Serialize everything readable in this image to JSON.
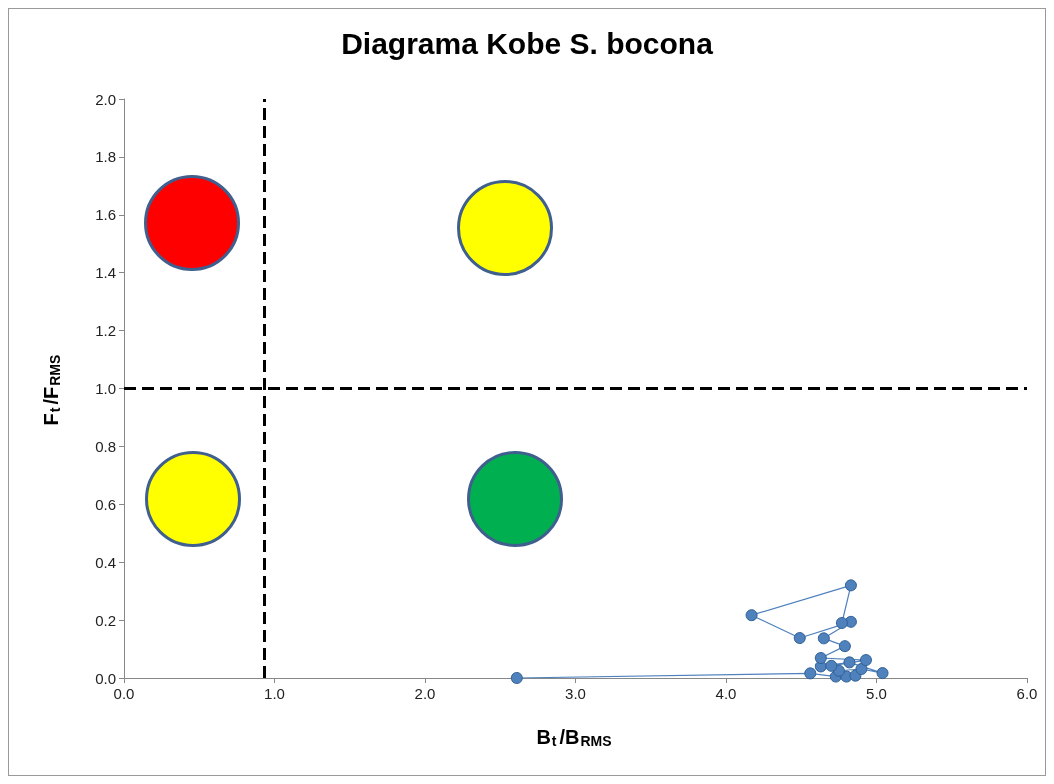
{
  "chart_data": {
    "type": "line",
    "title": "Diagrama Kobe S. bocona",
    "xlabel": "B$_{t}$/B$_{RMS}$",
    "ylabel": "F$_{t}$/F$_{RMS}$",
    "x": [
      2.61,
      4.56,
      4.73,
      4.8,
      4.86,
      4.75,
      4.9,
      5.04,
      4.82,
      4.63,
      4.7,
      4.93,
      4.63,
      4.79,
      4.65,
      4.83,
      4.49,
      4.17,
      4.83,
      4.77
    ],
    "series": [
      {
        "color": "#4f81bd",
        "values": [
          0.0,
          0.016,
          0.005,
          0.005,
          0.008,
          0.025,
          0.031,
          0.017,
          0.054,
          0.04,
          0.042,
          0.062,
          0.069,
          0.11,
          0.137,
          0.194,
          0.138,
          0.217,
          0.32,
          0.19
        ]
      }
    ],
    "xlim": [
      0,
      6
    ],
    "xticks": [
      {
        "value": 0,
        "label": "0.0"
      },
      {
        "value": 1,
        "label": "1.0"
      },
      {
        "value": 2,
        "label": "2.0"
      },
      {
        "value": 3,
        "label": "3.0"
      },
      {
        "value": 4,
        "label": "4.0"
      },
      {
        "value": 5,
        "label": "5.0"
      },
      {
        "value": 6,
        "label": "6.0"
      }
    ],
    "ylim": [
      0,
      2
    ],
    "yticks": [
      {
        "value": 0,
        "label": "0.0"
      },
      {
        "value": 0.2,
        "label": "0.2"
      },
      {
        "value": 0.4,
        "label": "0.4"
      },
      {
        "value": 0.6,
        "label": "0.6"
      },
      {
        "value": 0.8,
        "label": "0.8"
      },
      {
        "value": 1,
        "label": "1.0"
      },
      {
        "value": 1.2,
        "label": "1.2"
      },
      {
        "value": 1.4,
        "label": "1.4"
      },
      {
        "value": 1.6,
        "label": "1.6"
      },
      {
        "value": 1.8,
        "label": "1.8"
      },
      {
        "value": 2,
        "label": "2.0"
      }
    ],
    "ref_lines": [
      {
        "axis": "x",
        "value": 0.93,
        "color": "#000000",
        "line_style": "dashed"
      },
      {
        "axis": "y",
        "value": 1.0,
        "color": "#000000",
        "line_style": "dashed"
      }
    ],
    "grid": false,
    "marker": "circle",
    "line_style": "solid"
  }
}
